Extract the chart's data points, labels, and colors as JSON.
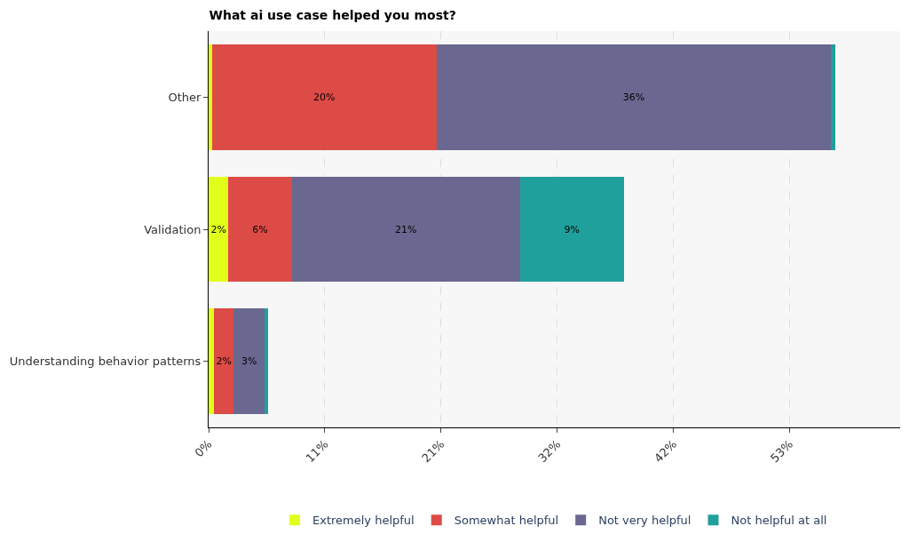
{
  "chart_data": {
    "type": "bar",
    "orientation": "horizontal",
    "stacked": true,
    "title": "What ai use case helped you most?",
    "categories": [
      "Other",
      "Validation",
      "Understanding behavior patterns"
    ],
    "series": [
      {
        "name": "Extremely helpful",
        "color": "#e2ff1c",
        "values": [
          0.3,
          1.8,
          0.5
        ],
        "value_labels": [
          null,
          "2%",
          null
        ]
      },
      {
        "name": "Somewhat helpful",
        "color": "#dd4b46",
        "values": [
          20.5,
          5.8,
          1.8
        ],
        "value_labels": [
          "20%",
          "6%",
          "2%"
        ]
      },
      {
        "name": "Not very helpful",
        "color": "#6a6890",
        "values": [
          36.0,
          20.8,
          2.8
        ],
        "value_labels": [
          "36%",
          "21%",
          "3%"
        ]
      },
      {
        "name": "Not helpful at all",
        "color": "#20a09c",
        "values": [
          0.4,
          9.5,
          0.3
        ],
        "value_labels": [
          null,
          "9%",
          null
        ]
      }
    ],
    "xlim": [
      0,
      63.1
    ],
    "xticks": [
      {
        "value": 0,
        "label": "0%"
      },
      {
        "value": 10.6,
        "label": "11%"
      },
      {
        "value": 21.2,
        "label": "21%"
      },
      {
        "value": 31.8,
        "label": "32%"
      },
      {
        "value": 42.4,
        "label": "42%"
      },
      {
        "value": 53.0,
        "label": "53%"
      }
    ],
    "grid": "x",
    "legend": "bottom"
  }
}
